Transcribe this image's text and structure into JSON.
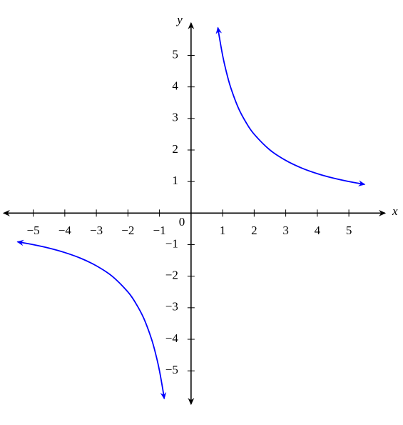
{
  "chart_data": {
    "type": "line",
    "xlabel": "x",
    "ylabel": "y",
    "origin_label": "0",
    "xlim": [
      -5.94,
      6.15
    ],
    "ylim": [
      -6.06,
      6.03
    ],
    "xticks": [
      {
        "value": -5,
        "label": "−5"
      },
      {
        "value": -4,
        "label": "−4"
      },
      {
        "value": -3,
        "label": "−3"
      },
      {
        "value": -2,
        "label": "−2"
      },
      {
        "value": -1,
        "label": "−1"
      },
      1,
      2,
      3,
      4,
      5
    ],
    "yticks": [
      {
        "value": -5,
        "label": "−5"
      },
      {
        "value": -4,
        "label": "−4"
      },
      {
        "value": -3,
        "label": "−3"
      },
      {
        "value": -2,
        "label": "−2"
      },
      {
        "value": -1,
        "label": "−1"
      },
      1,
      2,
      3,
      4,
      5
    ],
    "series": [
      {
        "color": "#0000ff",
        "x": [
          0.85,
          0.9,
          1,
          1.1,
          1.25,
          1.5,
          1.75,
          2,
          2.5,
          3,
          3.5,
          4,
          4.5,
          5,
          5.5
        ],
        "values": [
          5.88,
          5.56,
          5,
          4.55,
          4,
          3.33,
          2.86,
          2.5,
          2,
          1.67,
          1.43,
          1.25,
          1.11,
          1,
          0.91
        ]
      },
      {
        "color": "#0000ff",
        "x": [
          -5.5,
          -5,
          -4.5,
          -4,
          -3.5,
          -3,
          -2.5,
          -2,
          -1.75,
          -1.5,
          -1.25,
          -1.1,
          -1,
          -0.9,
          -0.85
        ],
        "values": [
          -0.91,
          -1,
          -1.11,
          -1.25,
          -1.43,
          -1.67,
          -2,
          -2.5,
          -2.86,
          -3.33,
          -4,
          -4.55,
          -5,
          -5.56,
          -5.88
        ]
      }
    ]
  }
}
